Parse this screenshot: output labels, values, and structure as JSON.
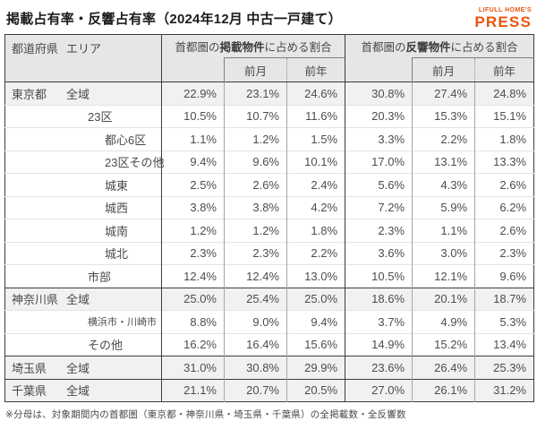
{
  "title": "掲載占有率・反響占有率（2024年12月 中古一戸建て）",
  "logo": {
    "line1": "LIFULL HOME'S",
    "line2": "PRESS",
    "color": "#E8550F"
  },
  "table": {
    "corner": {
      "prefecture_label": "都道府県",
      "area_label": "エリア"
    },
    "groups": [
      {
        "prefix": "首都圏の",
        "bold": "掲載物件",
        "suffix": "に占める割合",
        "subcols": [
          "前月",
          "前年"
        ]
      },
      {
        "prefix": "首都圏の",
        "bold": "反響物件",
        "suffix": "に占める割合",
        "subcols": [
          "前月",
          "前年"
        ]
      }
    ],
    "footnote": "※分母は、対象期間内の首都圏（東京都・神奈川県・埼玉県・千葉県）の全掲載数・全反響数"
  },
  "colors": {
    "header_bg": "#E6E6E4",
    "pref_row_bg": "#F1F1EF",
    "dark_border": "#3C3C3C",
    "light_border": "#E3E3E3",
    "logo_orange": "#E8550F"
  },
  "chart_data": {
    "type": "table",
    "title": "掲載占有率・反響占有率（2024年12月 中古一戸建て）",
    "column_groups": [
      "首都圏の掲載物件に占める割合",
      "首都圏の反響物件に占める割合"
    ],
    "columns": [
      "都道府県",
      "エリア",
      "掲載割合",
      "掲載割合 前月",
      "掲載割合 前年",
      "反響割合",
      "反響割合 前月",
      "反響割合 前年"
    ],
    "rows": [
      {
        "prefecture": "東京都",
        "area": "全域",
        "indent": 1,
        "group_start": true,
        "values": [
          "22.9%",
          "23.1%",
          "24.6%",
          "30.8%",
          "27.4%",
          "24.8%"
        ]
      },
      {
        "prefecture": "",
        "area": "23区",
        "indent": 2,
        "group_start": false,
        "values": [
          "10.5%",
          "10.7%",
          "11.6%",
          "20.3%",
          "15.3%",
          "15.1%"
        ]
      },
      {
        "prefecture": "",
        "area": "都心6区",
        "indent": 3,
        "group_start": false,
        "values": [
          "1.1%",
          "1.2%",
          "1.5%",
          "3.3%",
          "2.2%",
          "1.8%"
        ]
      },
      {
        "prefecture": "",
        "area": "23区その他",
        "indent": 3,
        "group_start": false,
        "values": [
          "9.4%",
          "9.6%",
          "10.1%",
          "17.0%",
          "13.1%",
          "13.3%"
        ]
      },
      {
        "prefecture": "",
        "area": "城東",
        "indent": 3,
        "group_start": false,
        "values": [
          "2.5%",
          "2.6%",
          "2.4%",
          "5.6%",
          "4.3%",
          "2.6%"
        ]
      },
      {
        "prefecture": "",
        "area": "城西",
        "indent": 3,
        "group_start": false,
        "values": [
          "3.8%",
          "3.8%",
          "4.2%",
          "7.2%",
          "5.9%",
          "6.2%"
        ]
      },
      {
        "prefecture": "",
        "area": "城南",
        "indent": 3,
        "group_start": false,
        "values": [
          "1.2%",
          "1.2%",
          "1.8%",
          "2.3%",
          "1.1%",
          "2.6%"
        ]
      },
      {
        "prefecture": "",
        "area": "城北",
        "indent": 3,
        "group_start": false,
        "values": [
          "2.3%",
          "2.3%",
          "2.2%",
          "3.6%",
          "3.0%",
          "2.3%"
        ]
      },
      {
        "prefecture": "",
        "area": "市部",
        "indent": 2,
        "group_start": false,
        "values": [
          "12.4%",
          "12.4%",
          "13.0%",
          "10.5%",
          "12.1%",
          "9.6%"
        ]
      },
      {
        "prefecture": "神奈川県",
        "area": "全域",
        "indent": 1,
        "group_start": true,
        "values": [
          "25.0%",
          "25.4%",
          "25.0%",
          "18.6%",
          "20.1%",
          "18.7%"
        ]
      },
      {
        "prefecture": "",
        "area": "横浜市・川崎市",
        "indent": 2,
        "group_start": false,
        "small": true,
        "values": [
          "8.8%",
          "9.0%",
          "9.4%",
          "3.7%",
          "4.9%",
          "5.3%"
        ]
      },
      {
        "prefecture": "",
        "area": "その他",
        "indent": 2,
        "group_start": false,
        "values": [
          "16.2%",
          "16.4%",
          "15.6%",
          "14.9%",
          "15.2%",
          "13.4%"
        ]
      },
      {
        "prefecture": "埼玉県",
        "area": "全域",
        "indent": 1,
        "group_start": true,
        "values": [
          "31.0%",
          "30.8%",
          "29.9%",
          "23.6%",
          "26.4%",
          "25.3%"
        ]
      },
      {
        "prefecture": "千葉県",
        "area": "全域",
        "indent": 1,
        "group_start": true,
        "values": [
          "21.1%",
          "20.7%",
          "20.5%",
          "27.0%",
          "26.1%",
          "31.2%"
        ]
      }
    ]
  }
}
